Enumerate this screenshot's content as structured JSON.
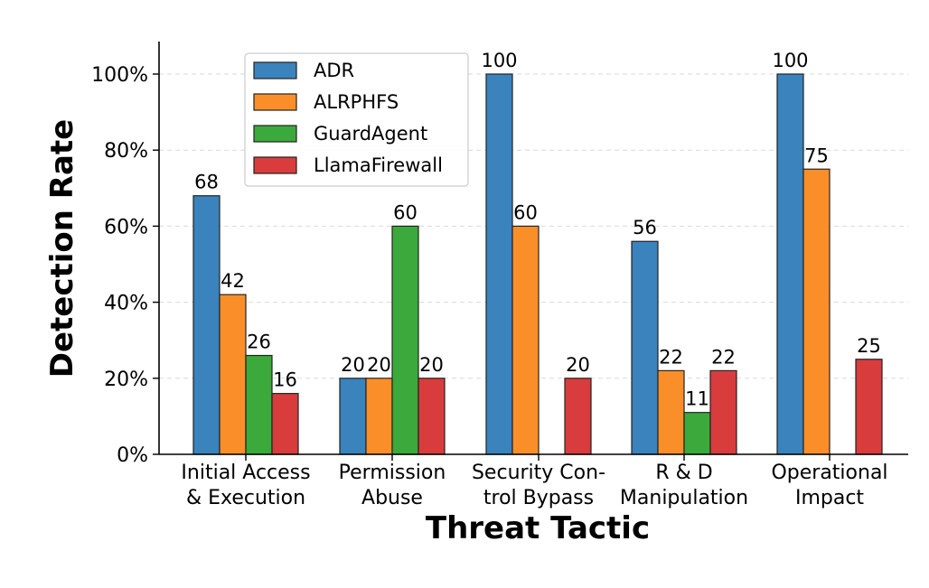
{
  "chart_data": {
    "type": "bar",
    "xlabel": "Threat Tactic",
    "ylabel": "Detection Rate",
    "ylim": [
      0,
      108
    ],
    "yticks": [
      0,
      20,
      40,
      60,
      80,
      100
    ],
    "ytick_labels": [
      "0%",
      "20%",
      "40%",
      "60%",
      "80%",
      "100%"
    ],
    "grid": true,
    "legend_position": "upper-left",
    "categories": [
      [
        "Initial Access",
        "& Execution"
      ],
      [
        "Permission",
        "Abuse"
      ],
      [
        "Security Con-",
        "trol Bypass"
      ],
      [
        "R & D",
        "Manipulation"
      ],
      [
        "Operational",
        "Impact"
      ]
    ],
    "series": [
      {
        "name": "ADR",
        "color": "#3a83bd",
        "values": [
          68,
          20,
          100,
          56,
          100
        ],
        "labels": [
          "68",
          "20",
          "100",
          "56",
          "100"
        ]
      },
      {
        "name": "ALRPHFS",
        "color": "#fa8f2a",
        "values": [
          42,
          20,
          60,
          22,
          75
        ],
        "labels": [
          "42",
          "20",
          "60",
          "22",
          "75"
        ]
      },
      {
        "name": "GuardAgent",
        "color": "#3ba93b",
        "values": [
          26,
          60,
          0,
          11,
          0
        ],
        "labels": [
          "26",
          "60",
          null,
          "11",
          null
        ]
      },
      {
        "name": "LlamaFirewall",
        "color": "#d83c3d",
        "values": [
          16,
          20,
          20,
          22,
          25
        ],
        "labels": [
          "16",
          "20",
          "20",
          "22",
          "25"
        ]
      }
    ]
  }
}
